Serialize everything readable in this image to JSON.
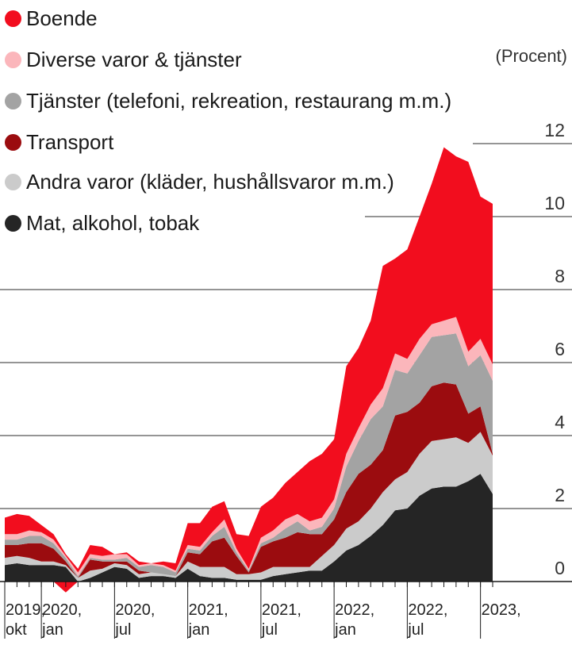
{
  "unit_label": "(Procent)",
  "legend": [
    {
      "name": "Boende",
      "color": "#f20d1e"
    },
    {
      "name": "Diverse varor & tjänster",
      "color": "#fbb6bb"
    },
    {
      "name": "Tjänster (telefoni, rekreation, restaurang m.m.)",
      "color": "#a3a3a3"
    },
    {
      "name": "Transport",
      "color": "#9b0c0f"
    },
    {
      "name": "Andra varor (kläder, hushållsvaror m.m.)",
      "color": "#cbcbcb"
    },
    {
      "name": "Mat, alkohol, tobak",
      "color": "#252525"
    }
  ],
  "chart_data": {
    "type": "area",
    "stacked": true,
    "title": "",
    "ylabel": "(Procent)",
    "ylim": [
      -0.4,
      12.5
    ],
    "y_ticks": [
      "0",
      "2",
      "4",
      "6",
      "8",
      "10",
      "12"
    ],
    "x_ticks": [
      {
        "line1": "2019,",
        "line2": "okt",
        "index": 0
      },
      {
        "line1": "2020,",
        "line2": "jan",
        "index": 3
      },
      {
        "line1": "2020,",
        "line2": "jul",
        "index": 9
      },
      {
        "line1": "2021,",
        "line2": "jan",
        "index": 15
      },
      {
        "line1": "2021,",
        "line2": "jul",
        "index": 21
      },
      {
        "line1": "2022,",
        "line2": "jan",
        "index": 27
      },
      {
        "line1": "2022,",
        "line2": "jul",
        "index": 33
      },
      {
        "line1": "2023,",
        "line2": "",
        "index": 39
      }
    ],
    "x": [
      "2019-10",
      "2019-11",
      "2019-12",
      "2020-01",
      "2020-02",
      "2020-03",
      "2020-04",
      "2020-05",
      "2020-06",
      "2020-07",
      "2020-08",
      "2020-09",
      "2020-10",
      "2020-11",
      "2020-12",
      "2021-01",
      "2021-02",
      "2021-03",
      "2021-04",
      "2021-05",
      "2021-06",
      "2021-07",
      "2021-08",
      "2021-09",
      "2021-10",
      "2021-11",
      "2021-12",
      "2022-01",
      "2022-02",
      "2022-03",
      "2022-04",
      "2022-05",
      "2022-06",
      "2022-07",
      "2022-08",
      "2022-09",
      "2022-10",
      "2022-11",
      "2022-12",
      "2023-01",
      "2023-02"
    ],
    "series": [
      {
        "name": "Mat, alkohol, tobak",
        "values": [
          0.45,
          0.5,
          0.45,
          0.45,
          0.45,
          0.4,
          0.0,
          0.1,
          0.25,
          0.4,
          0.35,
          0.1,
          0.15,
          0.15,
          0.1,
          0.35,
          0.15,
          0.1,
          0.1,
          0.05,
          0.05,
          0.05,
          0.15,
          0.2,
          0.25,
          0.3,
          0.3,
          0.55,
          0.85,
          1.0,
          1.25,
          1.55,
          1.95,
          2.0,
          2.35,
          2.55,
          2.6,
          2.6,
          2.75,
          2.95,
          2.4
        ]
      },
      {
        "name": "Andra varor (kläder, hushållsvaror m.m.)",
        "values": [
          0.2,
          0.2,
          0.2,
          0.1,
          0.1,
          0.05,
          0.1,
          0.2,
          0.1,
          0.1,
          0.1,
          0.1,
          0.1,
          0.05,
          0.05,
          0.2,
          0.25,
          0.3,
          0.3,
          0.15,
          0.15,
          0.2,
          0.25,
          0.2,
          0.15,
          0.1,
          0.4,
          0.45,
          0.6,
          0.65,
          0.75,
          0.9,
          0.85,
          1.0,
          1.15,
          1.3,
          1.3,
          1.35,
          1.05,
          1.15,
          1.05
        ]
      },
      {
        "name": "Transport",
        "values": [
          0.35,
          0.3,
          0.4,
          0.5,
          0.35,
          0.1,
          0.0,
          0.3,
          0.2,
          0.05,
          0.1,
          0.1,
          0.0,
          0.0,
          0.0,
          0.25,
          0.35,
          0.7,
          0.8,
          0.5,
          0.05,
          0.7,
          0.7,
          0.8,
          0.95,
          0.9,
          0.6,
          0.7,
          1.0,
          1.3,
          1.2,
          1.15,
          1.75,
          1.65,
          1.4,
          1.5,
          1.55,
          1.45,
          0.8,
          0.7,
          0.05
        ]
      },
      {
        "name": "Tjänster (telefoni, rekreation, restaurang m.m.)",
        "values": [
          0.15,
          0.15,
          0.2,
          0.2,
          0.15,
          0.1,
          0.05,
          0.05,
          0.05,
          0.05,
          0.1,
          0.1,
          0.2,
          0.2,
          0.1,
          0.1,
          0.1,
          0.15,
          0.3,
          0.1,
          0.05,
          0.1,
          0.1,
          0.25,
          0.3,
          0.1,
          0.2,
          0.3,
          0.7,
          0.9,
          1.25,
          1.2,
          1.25,
          1.05,
          1.3,
          1.35,
          1.3,
          1.4,
          1.3,
          1.4,
          2.0
        ]
      },
      {
        "name": "Diverse varor & tjänster",
        "values": [
          0.15,
          0.15,
          0.15,
          0.1,
          0.1,
          0.05,
          0.1,
          0.1,
          0.1,
          0.15,
          0.1,
          0.05,
          0.05,
          0.05,
          0.05,
          0.1,
          0.1,
          0.1,
          0.2,
          0.1,
          0.05,
          0.15,
          0.2,
          0.25,
          0.2,
          0.25,
          0.25,
          0.25,
          0.35,
          0.35,
          0.4,
          0.5,
          0.45,
          0.4,
          0.45,
          0.35,
          0.4,
          0.45,
          0.4,
          0.45,
          0.45
        ]
      },
      {
        "name": "Boende",
        "values": [
          0.45,
          0.55,
          0.4,
          0.2,
          0.15,
          0.05,
          0.1,
          0.25,
          0.25,
          0.0,
          0.05,
          0.1,
          0.0,
          0.1,
          0.2,
          0.6,
          0.65,
          0.7,
          0.5,
          0.4,
          0.9,
          0.85,
          0.9,
          1.0,
          1.15,
          1.65,
          1.75,
          1.65,
          2.4,
          2.2,
          2.3,
          3.35,
          2.6,
          3.0,
          3.35,
          3.85,
          4.75,
          4.4,
          5.2,
          3.9,
          4.4
        ]
      }
    ],
    "negative_excursions": [
      {
        "index": 5,
        "value": -0.3
      }
    ]
  }
}
